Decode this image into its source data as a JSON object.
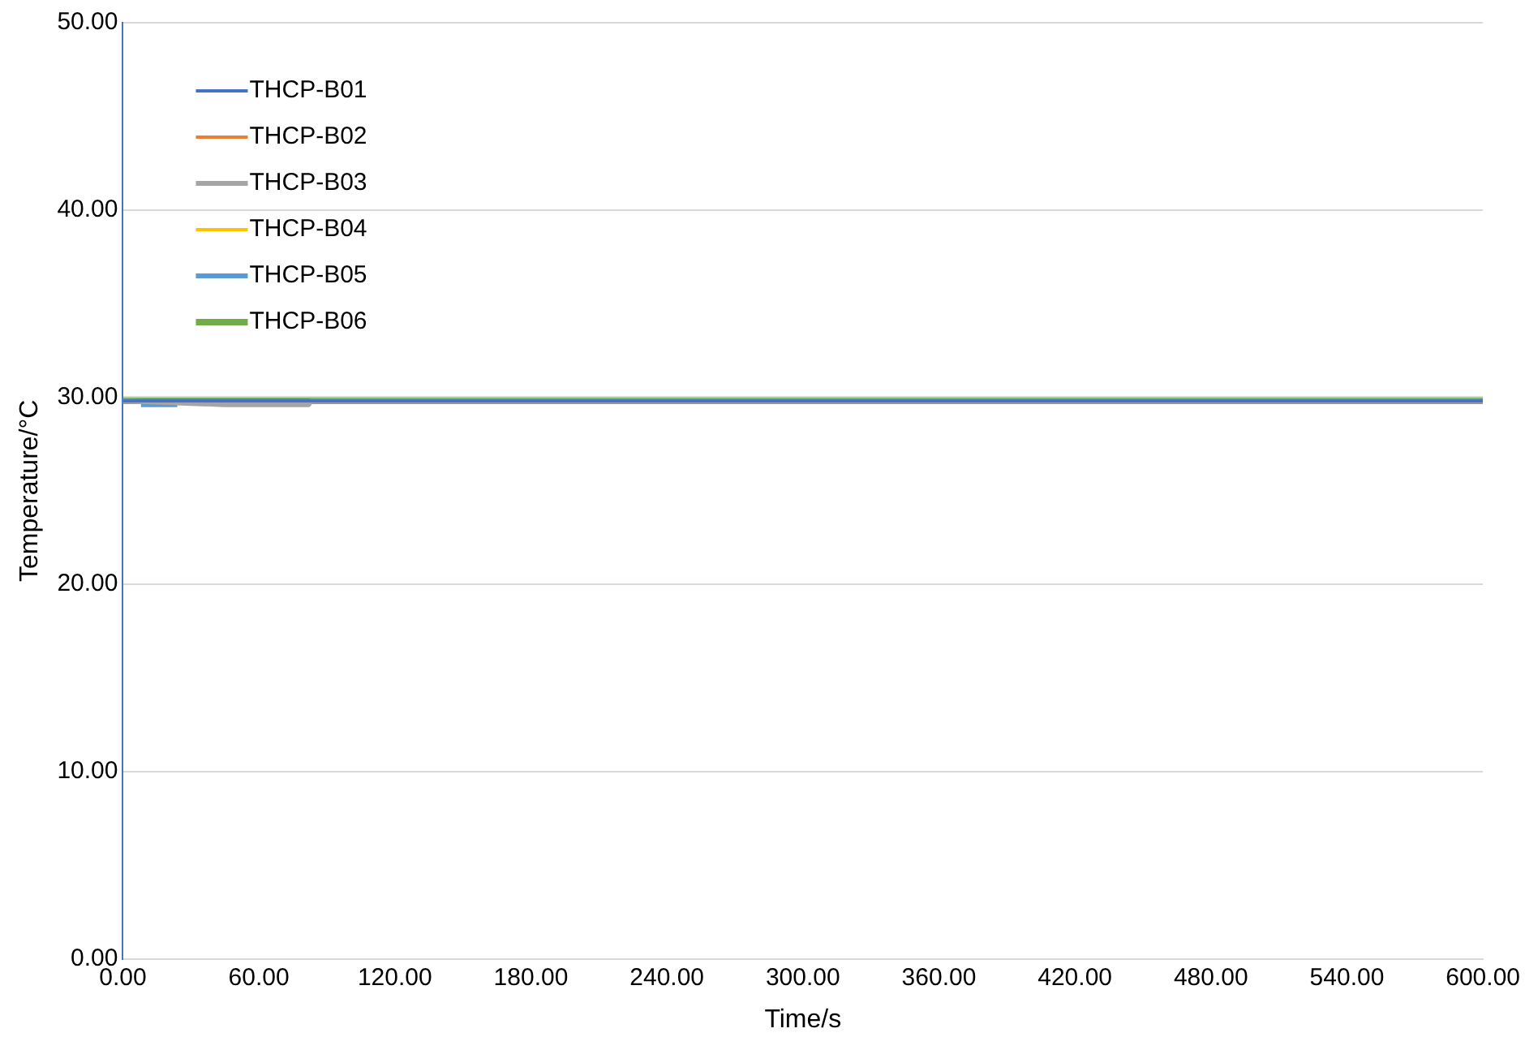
{
  "chart_data": {
    "type": "line",
    "xlabel": "Time/s",
    "ylabel": "Temperature/°C",
    "x": [
      0,
      600
    ],
    "xlim": [
      0,
      600
    ],
    "xticks": [
      {
        "value": 0,
        "label": "0.00"
      },
      {
        "value": 60,
        "label": "60.00"
      },
      {
        "value": 120,
        "label": "120.00"
      },
      {
        "value": 180,
        "label": "180.00"
      },
      {
        "value": 240,
        "label": "240.00"
      },
      {
        "value": 300,
        "label": "300.00"
      },
      {
        "value": 360,
        "label": "360.00"
      },
      {
        "value": 420,
        "label": "420.00"
      },
      {
        "value": 480,
        "label": "480.00"
      },
      {
        "value": 540,
        "label": "540.00"
      },
      {
        "value": 600,
        "label": "600.00"
      }
    ],
    "ylim": [
      0,
      50
    ],
    "yticks": [
      {
        "value": 0,
        "label": "0.00"
      },
      {
        "value": 10,
        "label": "10.00"
      },
      {
        "value": 20,
        "label": "20.00"
      },
      {
        "value": 30,
        "label": "30.00"
      },
      {
        "value": 40,
        "label": "40.00"
      },
      {
        "value": 50,
        "label": "50.00"
      }
    ],
    "grid": "y",
    "legend": "top left",
    "marker": "none",
    "series": [
      {
        "name": "THCP-B01",
        "color": "#4472c4",
        "values": [
          29.8,
          29.8
        ]
      },
      {
        "name": "THCP-B02",
        "color": "#ed7d31",
        "values": [
          null,
          null
        ]
      },
      {
        "name": "THCP-B03",
        "color": "#a5a5a5",
        "x": [
          0,
          45,
          82,
          83,
          600
        ],
        "values": [
          29.8,
          29.6,
          29.6,
          29.8,
          29.8
        ]
      },
      {
        "name": "THCP-B04",
        "color": "#ffc000",
        "values": [
          null,
          null
        ]
      },
      {
        "name": "THCP-B05",
        "color": "#5b9bd5",
        "x": [
          8,
          24
        ],
        "values": [
          29.6,
          29.6
        ]
      },
      {
        "name": "THCP-B06",
        "color": "#70ad47",
        "values": [
          29.8,
          29.8
        ]
      }
    ]
  }
}
